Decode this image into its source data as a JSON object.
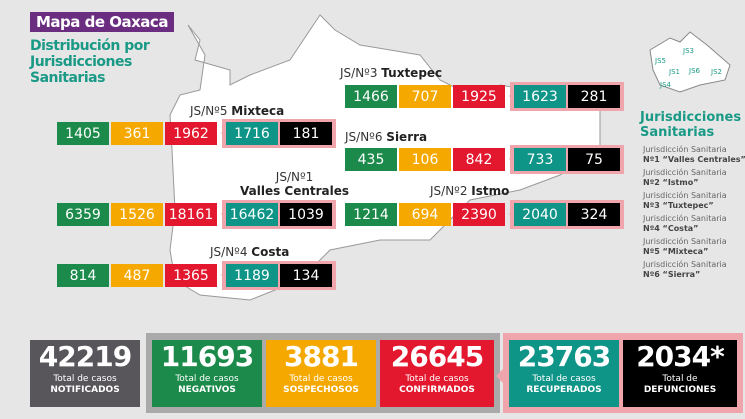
{
  "title": "Mapa de Oaxaca",
  "subtitle": "Distribución por Jurisdicciones Sanitarias",
  "colors": {
    "negativos": "#1b8a4a",
    "sospechosos": "#f5a800",
    "confirmados": "#e3172d",
    "recuperados": "#0f9488",
    "defunciones": "#000000",
    "notificados": "#58565b",
    "accent": "#6b2d7f"
  },
  "jurisdictions": [
    {
      "prefix": "JS/Nº3",
      "name": "Tuxtepec",
      "values": [
        "1466",
        "707",
        "1925",
        "1623",
        "281"
      ]
    },
    {
      "prefix": "JS/Nº5",
      "name": "Mixteca",
      "values": [
        "1405",
        "361",
        "1962",
        "1716",
        "181"
      ]
    },
    {
      "prefix": "JS/Nº6",
      "name": "Sierra",
      "values": [
        "435",
        "106",
        "842",
        "733",
        "75"
      ]
    },
    {
      "prefix": "JS/Nº1",
      "name": "Valles Centrales",
      "values": [
        "6359",
        "1526",
        "18161",
        "16462",
        "1039"
      ]
    },
    {
      "prefix": "JS/Nº2",
      "name": "Istmo",
      "values": [
        "1214",
        "694",
        "2390",
        "2040",
        "324"
      ]
    },
    {
      "prefix": "JS/Nº4",
      "name": "Costa",
      "values": [
        "814",
        "487",
        "1365",
        "1189",
        "134"
      ]
    }
  ],
  "minimap_labels": [
    "JS1",
    "JS2",
    "JS3",
    "JS4",
    "JS5",
    "JS6"
  ],
  "legend": {
    "title": "Jurisdicciones Sanitarias",
    "prefix": "Jurisdicción Sanitaria",
    "items": [
      "Nº1 “Valles Centrales”",
      "Nº2 “Istmo”",
      "Nº3 “Tuxtepec”",
      "Nº4 “Costa”",
      "Nº5 “Mixteca”",
      "Nº6 “Sierra”"
    ]
  },
  "totals": [
    {
      "value": "42219",
      "line1": "Total de casos",
      "line2": "NOTIFICADOS"
    },
    {
      "value": "11693",
      "line1": "Total de casos",
      "line2": "NEGATIVOS"
    },
    {
      "value": "3881",
      "line1": "Total de casos",
      "line2": "SOSPECHOSOS"
    },
    {
      "value": "26645",
      "line1": "Total de casos",
      "line2": "CONFIRMADOS"
    },
    {
      "value": "23763",
      "line1": "Total de casos",
      "line2": "RECUPERADOS"
    },
    {
      "value": "2034*",
      "line1": "Total de",
      "line2": "DEFUNCIONES"
    }
  ]
}
